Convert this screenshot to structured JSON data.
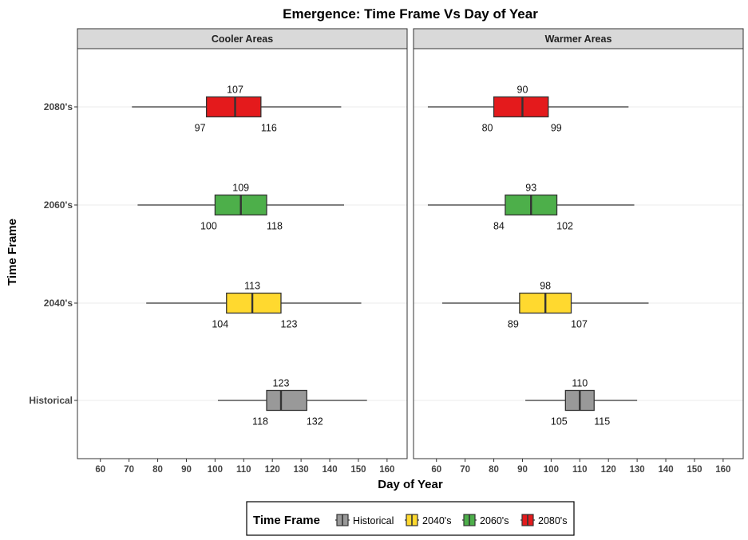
{
  "chart_data": {
    "type": "boxplot",
    "title": "Emergence: Time Frame Vs Day of Year",
    "xlabel": "Day of Year",
    "ylabel": "Time Frame",
    "xlim": [
      52,
      167
    ],
    "x_ticks": [
      60,
      70,
      80,
      90,
      100,
      110,
      120,
      130,
      140,
      150,
      160
    ],
    "categories": [
      "Historical",
      "2040's",
      "2060's",
      "2080's"
    ],
    "colors": {
      "Historical": "#999999",
      "2040's": "#FFD92F",
      "2060's": "#4DAF4A",
      "2080's": "#E41A1C"
    },
    "grid": true,
    "legend": {
      "title": "Time Frame",
      "position": "bottom",
      "entries": [
        "Historical",
        "2040's",
        "2060's",
        "2080's"
      ]
    },
    "facets": [
      {
        "name": "Cooler Areas",
        "boxes": [
          {
            "category": "Historical",
            "whisker_low": 101,
            "q1": 118,
            "median": 123,
            "q3": 132,
            "whisker_high": 153,
            "q1_label": "118",
            "median_label": "123",
            "q3_label": "132"
          },
          {
            "category": "2040's",
            "whisker_low": 76,
            "q1": 104,
            "median": 113,
            "q3": 123,
            "whisker_high": 151,
            "q1_label": "104",
            "median_label": "113",
            "q3_label": "123"
          },
          {
            "category": "2060's",
            "whisker_low": 73,
            "q1": 100,
            "median": 109,
            "q3": 118,
            "whisker_high": 145,
            "q1_label": "100",
            "median_label": "109",
            "q3_label": "118"
          },
          {
            "category": "2080's",
            "whisker_low": 71,
            "q1": 97,
            "median": 107,
            "q3": 116,
            "whisker_high": 144,
            "q1_label": "97",
            "median_label": "107",
            "q3_label": "116"
          }
        ]
      },
      {
        "name": "Warmer Areas",
        "boxes": [
          {
            "category": "Historical",
            "whisker_low": 91,
            "q1": 105,
            "median": 110,
            "q3": 115,
            "whisker_high": 130,
            "q1_label": "105",
            "median_label": "110",
            "q3_label": "115"
          },
          {
            "category": "2040's",
            "whisker_low": 62,
            "q1": 89,
            "median": 98,
            "q3": 107,
            "whisker_high": 134,
            "q1_label": "89",
            "median_label": "98",
            "q3_label": "107"
          },
          {
            "category": "2060's",
            "whisker_low": 57,
            "q1": 84,
            "median": 93,
            "q3": 102,
            "whisker_high": 129,
            "q1_label": "84",
            "median_label": "93",
            "q3_label": "102"
          },
          {
            "category": "2080's",
            "whisker_low": 57,
            "q1": 80,
            "median": 90,
            "q3": 99,
            "whisker_high": 127,
            "q1_label": "80",
            "median_label": "90",
            "q3_label": "99"
          }
        ]
      }
    ]
  }
}
